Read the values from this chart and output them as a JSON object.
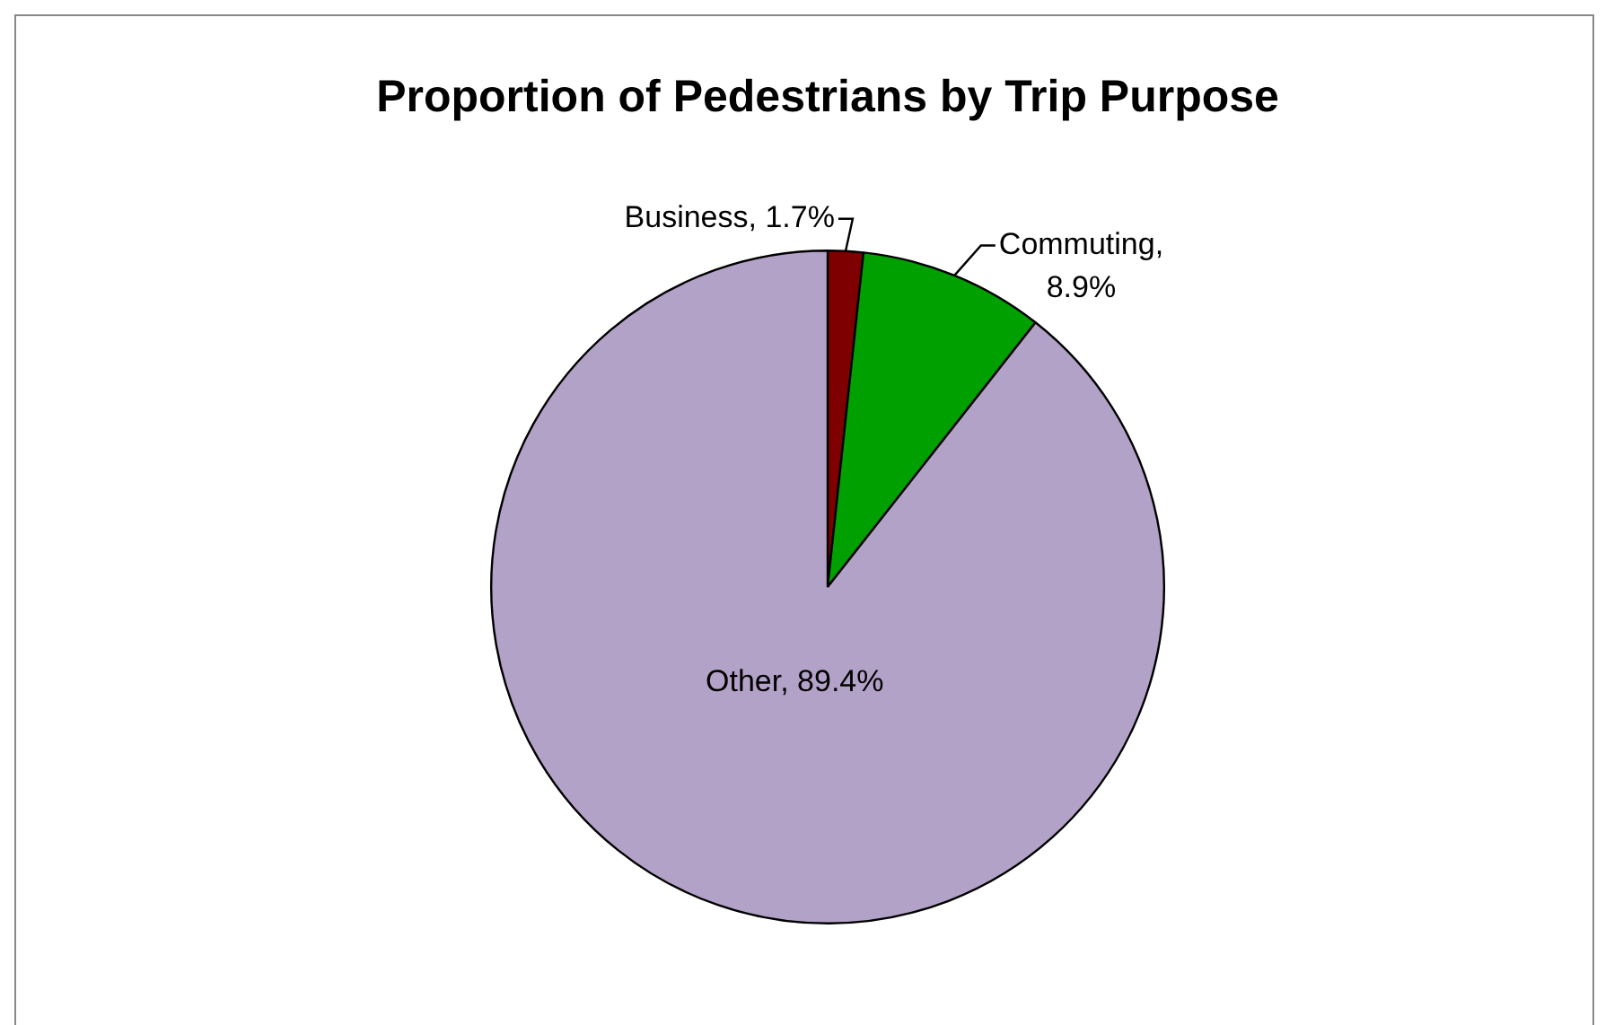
{
  "chart_data": {
    "type": "pie",
    "title": "Proportion of Pedestrians by Trip Purpose",
    "categories": [
      "Business",
      "Commuting",
      "Other"
    ],
    "values": [
      1.7,
      8.9,
      89.4
    ],
    "colors": [
      "#7f0000",
      "#00a000",
      "#b3a2c7"
    ],
    "value_labels": [
      ", 1.7%",
      ", 8.9%",
      ", 89.4%"
    ],
    "legend": false
  }
}
